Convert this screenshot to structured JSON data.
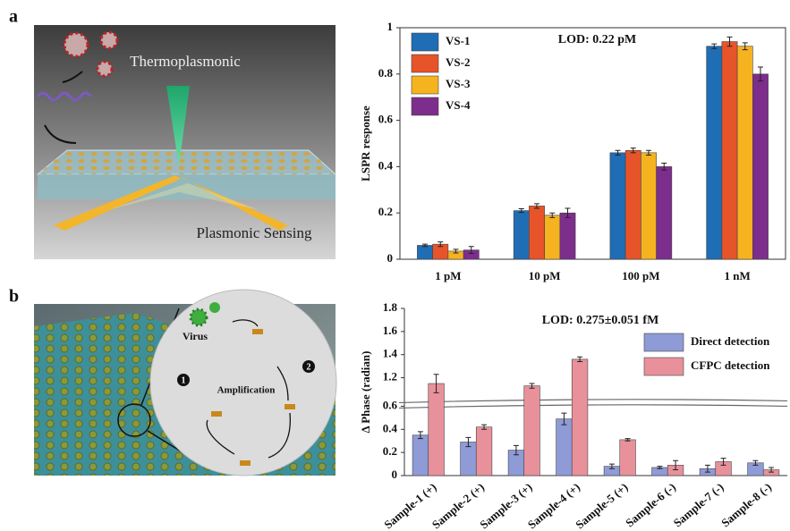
{
  "panels": [
    {
      "label": "a",
      "illustration_labels": [
        "Thermoplasmonic",
        "Plasmonic Sensing"
      ]
    },
    {
      "label": "b",
      "illustration_labels": [
        "Virus",
        "Amplification",
        "1",
        "2"
      ]
    }
  ],
  "chart_data": [
    {
      "type": "bar",
      "ylabel": "LSPR response",
      "annotation": "LOD: 0.22 pM",
      "categories": [
        "1 pM",
        "10 pM",
        "100 pM",
        "1 nM"
      ],
      "series": [
        {
          "name": "VS-1",
          "color": "#1f6db5",
          "values": [
            0.06,
            0.21,
            0.46,
            0.92
          ],
          "errors": [
            0.005,
            0.008,
            0.01,
            0.01
          ]
        },
        {
          "name": "VS-2",
          "color": "#e8542a",
          "values": [
            0.065,
            0.23,
            0.47,
            0.94
          ],
          "errors": [
            0.01,
            0.01,
            0.01,
            0.02
          ]
        },
        {
          "name": "VS-3",
          "color": "#f5b320",
          "values": [
            0.035,
            0.19,
            0.46,
            0.92
          ],
          "errors": [
            0.008,
            0.01,
            0.01,
            0.015
          ]
        },
        {
          "name": "VS-4",
          "color": "#7d2d8c",
          "values": [
            0.04,
            0.2,
            0.4,
            0.8
          ],
          "errors": [
            0.015,
            0.02,
            0.015,
            0.03
          ]
        }
      ],
      "ylim": [
        0,
        1
      ],
      "yticks": [
        0,
        0.2,
        0.4,
        0.6,
        0.8,
        1
      ],
      "legend": "upper left"
    },
    {
      "type": "bar",
      "ylabel": "Δ Phase (radian)",
      "annotation": "LOD: 0.275±0.051 fM",
      "categories": [
        "Sample-1 (+)",
        "Sample-2 (+)",
        "Sample-3 (+)",
        "Sample-4 (+)",
        "Sample-5 (+)",
        "Sample-6 (-)",
        "Sample-7 (-)",
        "Sample-8 (-)"
      ],
      "series": [
        {
          "name": "Direct detection",
          "color": "#8e9bd6",
          "values": [
            0.35,
            0.29,
            0.22,
            0.49,
            0.08,
            0.07,
            0.06,
            0.11
          ],
          "errors": [
            0.03,
            0.04,
            0.04,
            0.05,
            0.02,
            0.01,
            0.03,
            0.02
          ]
        },
        {
          "name": "CFPC detection",
          "color": "#e8919b",
          "values": [
            1.15,
            0.42,
            1.13,
            1.36,
            0.31,
            0.09,
            0.12,
            0.05
          ],
          "errors": [
            0.08,
            0.02,
            0.02,
            0.02,
            0.01,
            0.04,
            0.03,
            0.02
          ]
        }
      ],
      "ylim": [
        0,
        1.8
      ],
      "ybreak": [
        0.6,
        1.0
      ],
      "yticks": [
        0,
        0.2,
        0.4,
        0.6,
        1.2,
        1.4,
        1.6,
        1.8
      ],
      "legend": "upper right"
    }
  ]
}
